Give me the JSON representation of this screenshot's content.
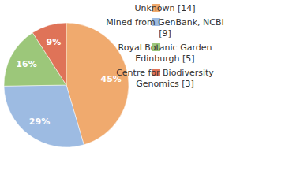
{
  "chart_data": {
    "type": "pie",
    "categories": [
      "Unknown [14]",
      "Mined from GenBank, NCBI [9]",
      "Royal Botanic Garden Edinburgh [5]",
      "Centre for Biodiversity Genomics [3]"
    ],
    "values": [
      45,
      29,
      16,
      9
    ],
    "value_labels": [
      "45%",
      "29%",
      "16%",
      "9%"
    ],
    "colors": [
      "#f0aa6e",
      "#9dbbe2",
      "#9cc77a",
      "#df7358"
    ],
    "data_labels": true,
    "legend": "top-right"
  }
}
